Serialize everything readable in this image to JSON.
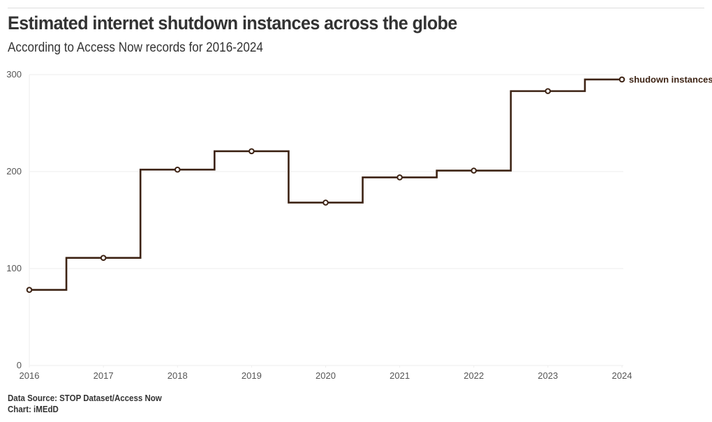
{
  "header": {
    "title": "Estimated internet shutdown instances across the globe",
    "subtitle": "According to Access Now records for 2016-2024"
  },
  "footer": {
    "source": "Data Source: STOP Dataset/Access Now",
    "credit": "Chart: iMEdD"
  },
  "colors": {
    "line": "#3d2314",
    "grid": "#eeeeee",
    "text": "#333333"
  },
  "chart_data": {
    "type": "line",
    "step": "center",
    "title": "Estimated internet shutdown instances across the globe",
    "subtitle": "According to Access Now records for 2016-2024",
    "xlabel": "",
    "ylabel": "",
    "x": [
      2016,
      2017,
      2018,
      2019,
      2020,
      2021,
      2022,
      2023,
      2024
    ],
    "xlim": [
      2016,
      2024
    ],
    "ylim": [
      0,
      300
    ],
    "yticks": [
      0,
      100,
      200,
      300
    ],
    "xticks": [
      "2016",
      "2017",
      "2018",
      "2019",
      "2020",
      "2021",
      "2022",
      "2023",
      "2024"
    ],
    "grid": true,
    "series": [
      {
        "name": "shudown instances",
        "values": [
          78,
          111,
          202,
          221,
          168,
          194,
          201,
          283,
          295
        ]
      }
    ],
    "legend": "end-of-line label"
  }
}
